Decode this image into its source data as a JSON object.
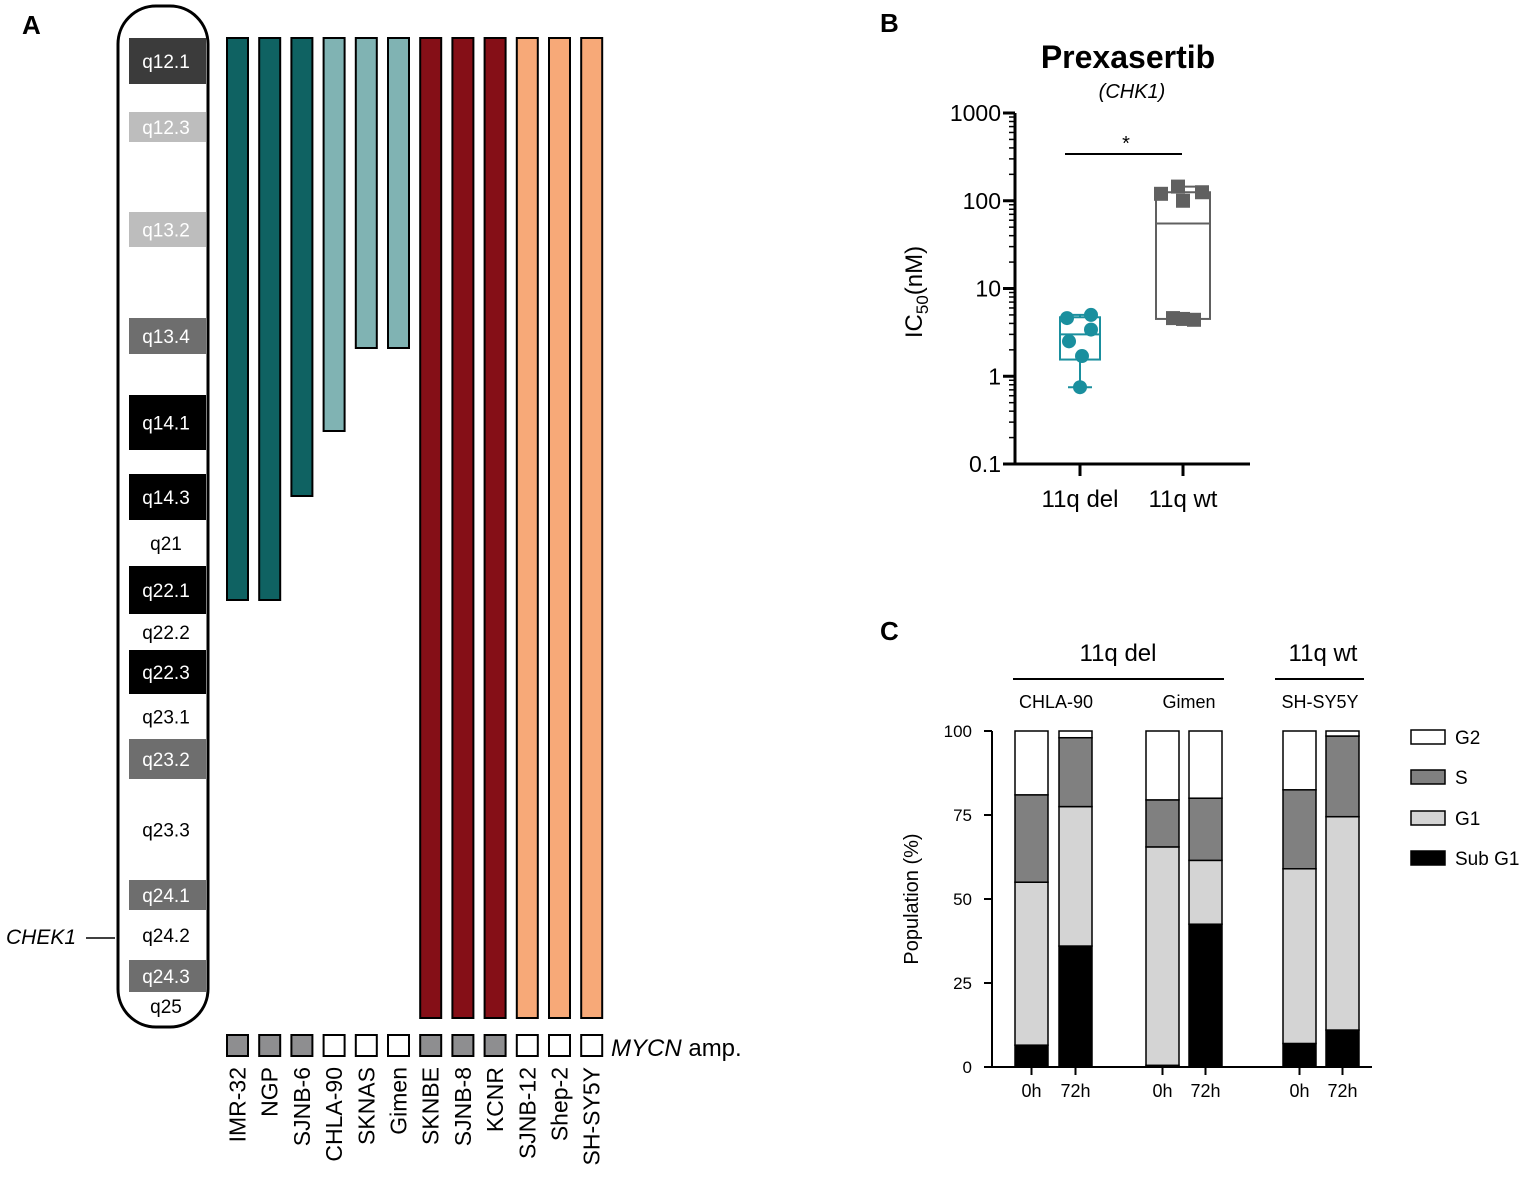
{
  "panels": {
    "a": "A",
    "b": "B",
    "c": "C"
  },
  "colors": {
    "del_dark": "#0f6262",
    "del_light": "#80b3b3",
    "mycn_dark": "#850f17",
    "wt_orange": "#f7a978",
    "mycn_amp_box": "#8e8e90",
    "teal_points": "#1a8f9e",
    "wt_points": "#606060",
    "band_black": "#000000",
    "band_dark": "#3b3b3b",
    "band_mid": "#6e6e6e",
    "band_light": "#bdbdbd",
    "g2": "#ffffff",
    "s": "#808080",
    "g1": "#d4d4d4",
    "subg1": "#000000"
  },
  "chart_data": [
    {
      "type": "ideogram",
      "panel": "A",
      "chromosome_bands": [
        {
          "name": "q12.1",
          "stain": "dark"
        },
        {
          "name": "",
          "stain": "white"
        },
        {
          "name": "q12.3",
          "stain": "light"
        },
        {
          "name": "",
          "stain": "white"
        },
        {
          "name": "q13.2",
          "stain": "light"
        },
        {
          "name": "",
          "stain": "white"
        },
        {
          "name": "q13.4",
          "stain": "mid"
        },
        {
          "name": "",
          "stain": "white"
        },
        {
          "name": "q14.1",
          "stain": "black"
        },
        {
          "name": "",
          "stain": "white"
        },
        {
          "name": "q14.3",
          "stain": "black"
        },
        {
          "name": "q21",
          "stain": "white"
        },
        {
          "name": "q22.1",
          "stain": "black"
        },
        {
          "name": "q22.2",
          "stain": "white"
        },
        {
          "name": "q22.3",
          "stain": "black"
        },
        {
          "name": "q23.1",
          "stain": "white"
        },
        {
          "name": "q23.2",
          "stain": "mid"
        },
        {
          "name": "q23.3",
          "stain": "white"
        },
        {
          "name": "q24.1",
          "stain": "mid"
        },
        {
          "name": "q24.2",
          "stain": "white"
        },
        {
          "name": "q24.3",
          "stain": "mid"
        },
        {
          "name": "q25",
          "stain": "white"
        }
      ],
      "gene_marker": "CHEK1",
      "gene_marker_band": "q24.2",
      "cell_lines": [
        {
          "name": "IMR-32",
          "group": "del_dark",
          "retained_to_band": "q22.1",
          "mycn_amp": true
        },
        {
          "name": "NGP",
          "group": "del_dark",
          "retained_to_band": "q22.1",
          "mycn_amp": true
        },
        {
          "name": "SJNB-6",
          "group": "del_dark",
          "retained_to_band": "q14.3",
          "mycn_amp": true
        },
        {
          "name": "CHLA-90",
          "group": "del_light",
          "retained_to_band": "q14.1",
          "mycn_amp": false
        },
        {
          "name": "SKNAS",
          "group": "del_light",
          "retained_to_band": "q13.4",
          "mycn_amp": false
        },
        {
          "name": "Gimen",
          "group": "del_light",
          "retained_to_band": "q13.4",
          "mycn_amp": false
        },
        {
          "name": "SKNBE",
          "group": "mycn_dark",
          "retained_to_band": "q25",
          "mycn_amp": true
        },
        {
          "name": "SJNB-8",
          "group": "mycn_dark",
          "retained_to_band": "q25",
          "mycn_amp": true
        },
        {
          "name": "KCNR",
          "group": "mycn_dark",
          "retained_to_band": "q25",
          "mycn_amp": true
        },
        {
          "name": "SJNB-12",
          "group": "wt_orange",
          "retained_to_band": "q25",
          "mycn_amp": false
        },
        {
          "name": "Shep-2",
          "group": "wt_orange",
          "retained_to_band": "q25",
          "mycn_amp": false
        },
        {
          "name": "SH-SY5Y",
          "group": "wt_orange",
          "retained_to_band": "q25",
          "mycn_amp": false
        }
      ],
      "mycn_label_italic": "MYCN",
      "mycn_label_rest": " amp."
    },
    {
      "type": "box-scatter",
      "panel": "B",
      "title": "Prexasertib",
      "subtitle": "(CHK1)",
      "ylabel_main": "IC",
      "ylabel_sub": "50",
      "ylabel_unit": "(nM)",
      "yscale": "log",
      "ylim": [
        0.1,
        1000
      ],
      "yticks": [
        {
          "value": 0.1,
          "label": "0.1"
        },
        {
          "value": 1,
          "label": "1"
        },
        {
          "value": 10,
          "label": "10"
        },
        {
          "value": 100,
          "label": "100"
        },
        {
          "value": 1000,
          "label": "1000"
        }
      ],
      "categories": [
        "11q del",
        "11q wt"
      ],
      "groups": [
        {
          "name": "11q del",
          "marker": "circle",
          "points": [
            5.0,
            4.6,
            3.4,
            2.5,
            1.7,
            0.75
          ],
          "box": {
            "min": 0.75,
            "q1": 1.55,
            "median": 3.0,
            "q3": 4.7,
            "max": 5.0
          }
        },
        {
          "name": "11q wt",
          "marker": "square",
          "points": [
            145,
            125,
            120,
            100,
            4.6,
            4.5,
            4.4
          ],
          "box": {
            "min": 4.4,
            "q1": 4.5,
            "median": 55,
            "q3": 125,
            "max": 145
          }
        }
      ],
      "significance": "*"
    },
    {
      "type": "stacked-bar",
      "panel": "C",
      "ylabel": "Population (%)",
      "ylim": [
        0,
        100
      ],
      "yticks": [
        "0",
        "25",
        "50",
        "75",
        "100"
      ],
      "group_headers": [
        {
          "label": "11q del",
          "lines": [
            "CHLA-90",
            "Gimen"
          ]
        },
        {
          "label": "11q wt",
          "lines": [
            "SH-SY5Y"
          ]
        }
      ],
      "bars": [
        {
          "line": "CHLA-90",
          "time": "0h",
          "values": {
            "Sub G1": 6.5,
            "G1": 48.5,
            "S": 26,
            "G2": 19
          }
        },
        {
          "line": "CHLA-90",
          "time": "72h",
          "values": {
            "Sub G1": 36,
            "G1": 41.5,
            "S": 20.5,
            "G2": 2
          }
        },
        {
          "line": "Gimen",
          "time": "0h",
          "values": {
            "Sub G1": 0.5,
            "G1": 65,
            "S": 14,
            "G2": 20.5
          }
        },
        {
          "line": "Gimen",
          "time": "72h",
          "values": {
            "Sub G1": 42.5,
            "G1": 19,
            "S": 18.5,
            "G2": 20
          }
        },
        {
          "line": "SH-SY5Y",
          "time": "0h",
          "values": {
            "Sub G1": 7,
            "G1": 52,
            "S": 23.5,
            "G2": 17.5
          }
        },
        {
          "line": "SH-SY5Y",
          "time": "72h",
          "values": {
            "Sub G1": 11,
            "G1": 63.5,
            "S": 24,
            "G2": 1.5
          }
        }
      ],
      "legend": [
        {
          "label": "G2",
          "key": "G2"
        },
        {
          "label": "S",
          "key": "S"
        },
        {
          "label": "G1",
          "key": "G1"
        },
        {
          "label": "Sub G1",
          "key": "Sub G1"
        }
      ]
    }
  ]
}
